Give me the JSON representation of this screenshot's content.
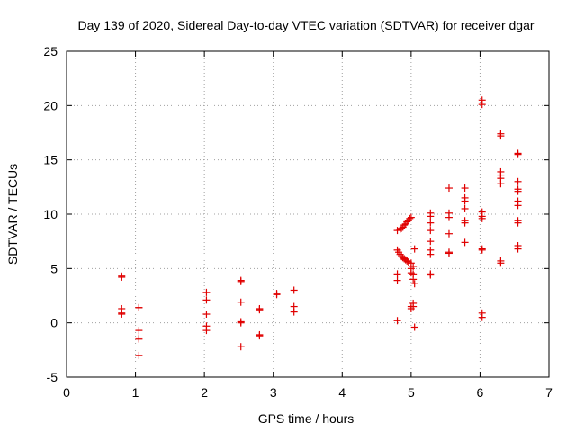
{
  "chart_data": {
    "type": "scatter",
    "title": "Day 139 of 2020, Sidereal Day-to-day VTEC variation (SDTVAR) for receiver dgar",
    "xlabel": "GPS time / hours",
    "ylabel": "SDTVAR / TECUs",
    "xlim": [
      0,
      7
    ],
    "ylim": [
      -5,
      25
    ],
    "xticks": [
      "0",
      "1",
      "2",
      "3",
      "4",
      "5",
      "6",
      "7"
    ],
    "yticks": [
      "-5",
      "0",
      "5",
      "10",
      "15",
      "20",
      "25"
    ],
    "grid": true,
    "marker": "+",
    "color": "#e00000",
    "series": [
      {
        "name": "dgar",
        "points": [
          [
            0.8,
            4.3
          ],
          [
            0.8,
            4.2
          ],
          [
            0.8,
            1.3
          ],
          [
            0.8,
            0.9
          ],
          [
            0.8,
            0.8
          ],
          [
            1.05,
            1.4
          ],
          [
            1.05,
            1.4
          ],
          [
            1.05,
            -0.7
          ],
          [
            1.05,
            -1.4
          ],
          [
            1.05,
            -1.5
          ],
          [
            1.05,
            -3.0
          ],
          [
            2.03,
            2.8
          ],
          [
            2.03,
            2.1
          ],
          [
            2.03,
            0.8
          ],
          [
            2.03,
            -0.3
          ],
          [
            2.03,
            -0.7
          ],
          [
            2.53,
            3.9
          ],
          [
            2.53,
            3.8
          ],
          [
            2.53,
            1.9
          ],
          [
            2.53,
            0.1
          ],
          [
            2.53,
            0.0
          ],
          [
            2.53,
            -2.2
          ],
          [
            2.8,
            1.3
          ],
          [
            2.8,
            1.2
          ],
          [
            2.8,
            -1.1
          ],
          [
            2.8,
            -1.2
          ],
          [
            3.05,
            2.7
          ],
          [
            3.05,
            2.6
          ],
          [
            3.3,
            3.0
          ],
          [
            3.3,
            1.5
          ],
          [
            3.3,
            1.0
          ],
          [
            4.8,
            8.5
          ],
          [
            4.8,
            6.7
          ],
          [
            4.8,
            4.5
          ],
          [
            4.8,
            3.9
          ],
          [
            4.8,
            0.2
          ],
          [
            4.82,
            6.5
          ],
          [
            4.84,
            6.3
          ],
          [
            4.86,
            6.1
          ],
          [
            4.88,
            6.0
          ],
          [
            4.9,
            5.9
          ],
          [
            4.92,
            5.8
          ],
          [
            4.94,
            5.7
          ],
          [
            4.96,
            5.6
          ],
          [
            4.84,
            8.6
          ],
          [
            4.86,
            8.7
          ],
          [
            4.88,
            8.8
          ],
          [
            4.9,
            9.0
          ],
          [
            4.92,
            9.1
          ],
          [
            4.94,
            9.3
          ],
          [
            4.96,
            9.4
          ],
          [
            4.98,
            9.6
          ],
          [
            5.0,
            9.7
          ],
          [
            5.0,
            5.5
          ],
          [
            5.0,
            5.0
          ],
          [
            5.0,
            4.6
          ],
          [
            5.0,
            1.5
          ],
          [
            5.0,
            1.3
          ],
          [
            5.03,
            5.2
          ],
          [
            5.03,
            4.5
          ],
          [
            5.03,
            4.0
          ],
          [
            5.03,
            1.8
          ],
          [
            5.03,
            1.5
          ],
          [
            5.05,
            6.8
          ],
          [
            5.05,
            3.6
          ],
          [
            5.05,
            -0.4
          ],
          [
            5.28,
            10.1
          ],
          [
            5.28,
            9.8
          ],
          [
            5.28,
            9.2
          ],
          [
            5.28,
            8.5
          ],
          [
            5.28,
            7.5
          ],
          [
            5.28,
            6.7
          ],
          [
            5.28,
            6.3
          ],
          [
            5.28,
            4.5
          ],
          [
            5.28,
            4.4
          ],
          [
            5.55,
            12.4
          ],
          [
            5.55,
            10.1
          ],
          [
            5.55,
            9.7
          ],
          [
            5.55,
            8.2
          ],
          [
            5.55,
            6.5
          ],
          [
            5.55,
            6.4
          ],
          [
            5.78,
            12.4
          ],
          [
            5.78,
            11.5
          ],
          [
            5.78,
            11.2
          ],
          [
            5.78,
            10.5
          ],
          [
            5.78,
            9.4
          ],
          [
            5.78,
            9.2
          ],
          [
            5.78,
            7.4
          ],
          [
            6.03,
            20.5
          ],
          [
            6.03,
            20.1
          ],
          [
            6.03,
            10.2
          ],
          [
            6.03,
            9.8
          ],
          [
            6.03,
            9.6
          ],
          [
            6.03,
            6.8
          ],
          [
            6.03,
            6.7
          ],
          [
            6.03,
            0.9
          ],
          [
            6.03,
            0.5
          ],
          [
            6.3,
            17.4
          ],
          [
            6.3,
            17.2
          ],
          [
            6.3,
            13.9
          ],
          [
            6.3,
            13.6
          ],
          [
            6.3,
            13.3
          ],
          [
            6.3,
            12.8
          ],
          [
            6.3,
            5.7
          ],
          [
            6.3,
            5.5
          ],
          [
            6.55,
            15.6
          ],
          [
            6.55,
            15.5
          ],
          [
            6.55,
            13.0
          ],
          [
            6.55,
            12.3
          ],
          [
            6.55,
            12.1
          ],
          [
            6.55,
            11.2
          ],
          [
            6.55,
            10.8
          ],
          [
            6.55,
            9.4
          ],
          [
            6.55,
            9.2
          ],
          [
            6.55,
            7.1
          ],
          [
            6.55,
            6.8
          ]
        ]
      }
    ]
  }
}
